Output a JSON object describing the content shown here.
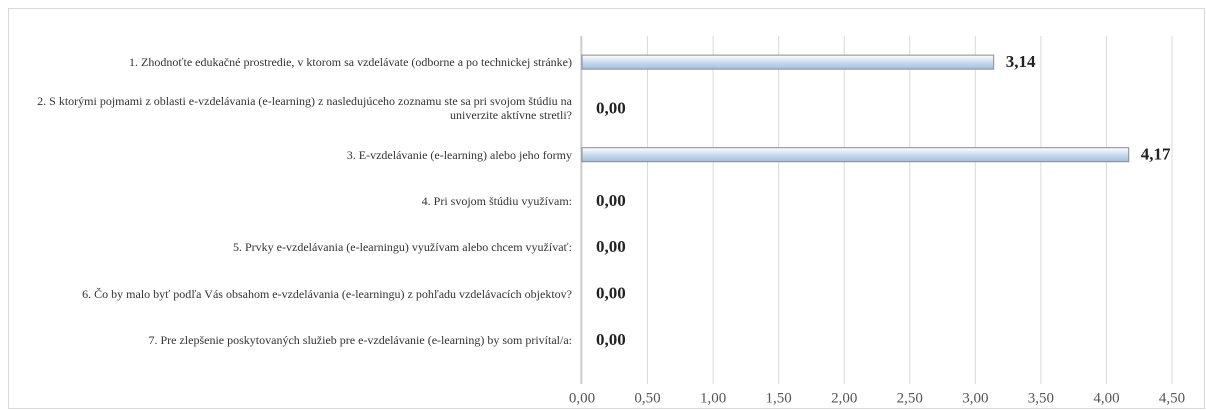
{
  "chart_data": {
    "type": "bar",
    "orientation": "horizontal",
    "categories": [
      "1. Zhodnoťte edukačné prostredie, v ktorom sa vzdelávate (odborne a po technickej stránke)",
      "2. S ktorými pojmami  z oblasti e-vzdelávania (e-learning) z nasledujúceho zoznamu ste sa pri svojom štúdiu na univerzite aktívne stretli?",
      "3. E-vzdelávanie (e-learning) alebo jeho formy",
      "4. Pri svojom štúdiu využívam:",
      "5. Prvky e-vzdelávania (e-learningu) využívam alebo chcem využívať:",
      "6. Čo by malo byť podľa Vás obsahom e-vzdelávania (e-learningu) z pohľadu vzdelávacích objektov?",
      "7. Pre zlepšenie poskytovaných služieb pre e-vzdelávanie (e-learning) by som privítal/a:"
    ],
    "values": [
      3.14,
      0,
      4.17,
      0,
      0,
      0,
      0
    ],
    "value_labels": [
      "3,14",
      "0,00",
      "4,17",
      "0,00",
      "0,00",
      "0,00",
      "0,00"
    ],
    "color": "#b9d1ea",
    "xlim": [
      0,
      4.5
    ],
    "xticks": [
      {
        "value": 0,
        "label": "0,00"
      },
      {
        "value": 0.5,
        "label": "0,50"
      },
      {
        "value": 1,
        "label": "1,00"
      },
      {
        "value": 1.5,
        "label": "1,50"
      },
      {
        "value": 2,
        "label": "2,00"
      },
      {
        "value": 2.5,
        "label": "2,50"
      },
      {
        "value": 3,
        "label": "3,00"
      },
      {
        "value": 3.5,
        "label": "3,50"
      },
      {
        "value": 4,
        "label": "4,00"
      },
      {
        "value": 4.5,
        "label": "4,50"
      }
    ],
    "grid": true
  }
}
